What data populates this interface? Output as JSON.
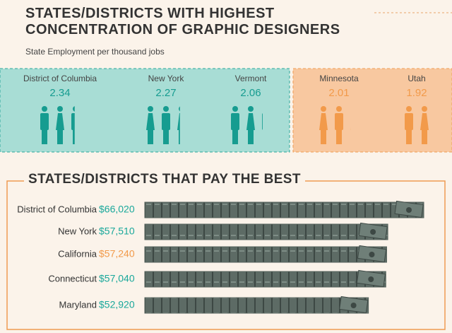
{
  "chart_data": [
    {
      "type": "pictograph",
      "title": "STATES/DISTRICTS WITH HIGHEST CONCENTRATION OF GRAPHIC DESIGNERS",
      "subtitle": "State Employment per thousand jobs",
      "categories": [
        "District of Columbia",
        "New York",
        "Vermont",
        "Minnesota",
        "Utah"
      ],
      "values": [
        2.34,
        2.27,
        2.06,
        2.01,
        1.92
      ],
      "colors": [
        "#169c90",
        "#169c90",
        "#169c90",
        "#f29a4a",
        "#f29a4a"
      ]
    },
    {
      "type": "bar",
      "title": "STATES/DISTRICTS THAT PAY THE BEST",
      "categories": [
        "District of Columbia",
        "New York",
        "California",
        "Connecticut",
        "Maryland"
      ],
      "values": [
        66020,
        57510,
        57240,
        57040,
        52920
      ],
      "value_labels": [
        "$66,020",
        "$57,510",
        "$57,240",
        "$57,040",
        "$52,920"
      ],
      "value_label_colors": [
        "#1aa89b",
        "#1aa89b",
        "#f29a4a",
        "#1aa89b",
        "#1aa89b"
      ],
      "color": "#55635d"
    }
  ]
}
